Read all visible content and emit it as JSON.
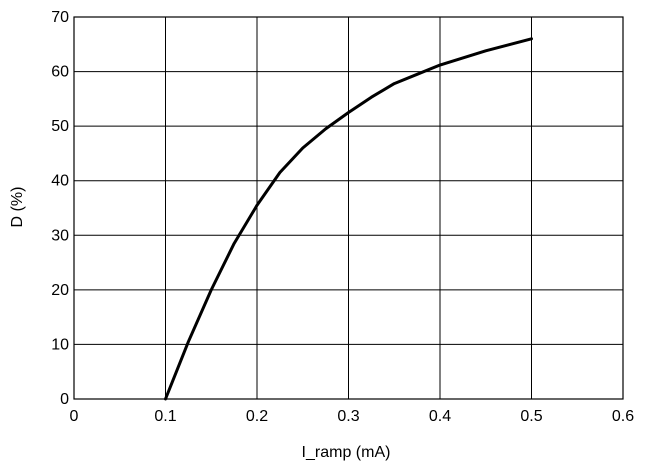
{
  "chart_data": {
    "type": "line",
    "xlabel": "I_ramp (mA)",
    "ylabel": "D (%)",
    "xlim": [
      0,
      0.6
    ],
    "ylim": [
      0,
      70
    ],
    "xticks": [
      0,
      0.1,
      0.2,
      0.3,
      0.4,
      0.5,
      0.6
    ],
    "yticks": [
      0,
      10,
      20,
      30,
      40,
      50,
      60,
      70
    ],
    "xtick_labels": [
      "0",
      "0.1",
      "0.2",
      "0.3",
      "0.4",
      "0.5",
      "0.6"
    ],
    "ytick_labels": [
      "0",
      "10",
      "20",
      "30",
      "40",
      "50",
      "60",
      "70"
    ],
    "grid": true,
    "legend": "none",
    "series": [
      {
        "color": "#000000",
        "x": [
          0.1,
          0.125,
          0.15,
          0.175,
          0.2,
          0.225,
          0.25,
          0.275,
          0.3,
          0.325,
          0.35,
          0.375,
          0.4,
          0.425,
          0.45,
          0.475,
          0.5
        ],
        "y": [
          0,
          10.5,
          20,
          28.5,
          35.5,
          41.5,
          46,
          49.5,
          52.5,
          55.3,
          57.8,
          59.5,
          61.2,
          62.5,
          63.8,
          64.9,
          66
        ]
      }
    ]
  }
}
